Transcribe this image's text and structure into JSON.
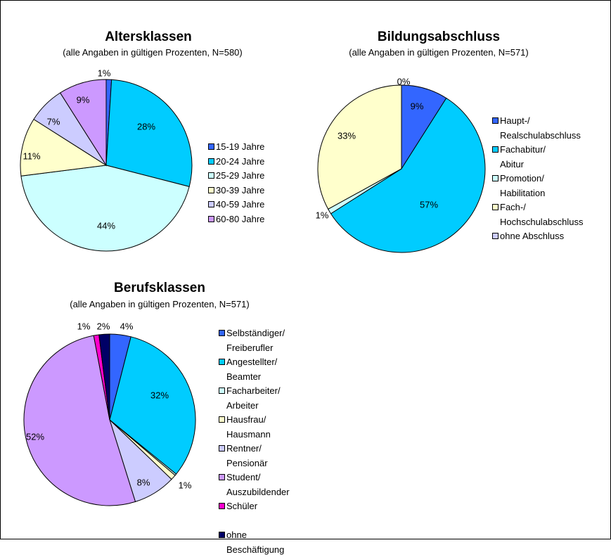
{
  "chart_data": [
    {
      "type": "pie",
      "title": "Altersklassen",
      "subtitle": "(alle Angaben in gültigen Prozenten, N=580)",
      "categories": [
        "15-19 Jahre",
        "20-24 Jahre",
        "25-29 Jahre",
        "30-39 Jahre",
        "40-59 Jahre",
        "60-80 Jahre"
      ],
      "values": [
        1,
        28,
        44,
        11,
        7,
        9
      ],
      "data_labels": [
        "1%",
        "28%",
        "44%",
        "11%",
        "7%",
        "9%"
      ],
      "colors": [
        "#3366ff",
        "#00ccff",
        "#ccffff",
        "#ffffcc",
        "#ccccff",
        "#cc99ff"
      ],
      "legend_lines": [
        [
          "15-19 Jahre"
        ],
        [
          "20-24 Jahre"
        ],
        [
          "25-29 Jahre"
        ],
        [
          "30-39 Jahre"
        ],
        [
          "40-59 Jahre"
        ],
        [
          "60-80 Jahre"
        ]
      ],
      "legend": "right"
    },
    {
      "type": "pie",
      "title": "Bildungsabschluss",
      "subtitle": "(alle Angaben in gültigen Prozenten, N=571)",
      "categories": [
        "Haupt-/ Realschulabschluss",
        "Fachabitur/ Abitur",
        "Promotion/ Habilitation",
        "Fach-/ Hochschulabschluss",
        "ohne Abschluss"
      ],
      "values": [
        9,
        57,
        1,
        33,
        0
      ],
      "data_labels": [
        "9%",
        "57%",
        "1%",
        "33%",
        "0%"
      ],
      "colors": [
        "#3366ff",
        "#00ccff",
        "#ccffff",
        "#ffffcc",
        "#ccccff"
      ],
      "legend_lines": [
        [
          "Haupt-/",
          "Realschulabschluss"
        ],
        [
          "Fachabitur/",
          "Abitur"
        ],
        [
          "Promotion/",
          "Habilitation"
        ],
        [
          "Fach-/",
          "Hochschulabschluss"
        ],
        [
          "ohne Abschluss"
        ]
      ],
      "legend": "right"
    },
    {
      "type": "pie",
      "title": "Berufsklassen",
      "subtitle": "(alle Angaben in gültigen Prozenten, N=571)",
      "categories": [
        "Selbständiger/ Freiberufler",
        "Angestellter/ Beamter",
        "Facharbeiter/ Arbeiter",
        "Hausfrau/ Hausmann",
        "Rentner/ Pensionär",
        "Student/ Auszubildender",
        "Schüler",
        "ohne Beschäftigung"
      ],
      "values": [
        4,
        32,
        0.3,
        1,
        8,
        52,
        1,
        2
      ],
      "data_labels": [
        "4%",
        "32%",
        "",
        "1%",
        "8%",
        "52%",
        "1%",
        "2%"
      ],
      "colors": [
        "#3366ff",
        "#00ccff",
        "#ccffff",
        "#ffffcc",
        "#ccccff",
        "#cc99ff",
        "#ff00cc",
        "#000066"
      ],
      "legend_lines": [
        [
          "Selbständiger/",
          "Freiberufler"
        ],
        [
          "Angestellter/",
          "Beamter"
        ],
        [
          "Facharbeiter/",
          "Arbeiter"
        ],
        [
          "Hausfrau/",
          "Hausmann"
        ],
        [
          "Rentner/",
          "Pensionär"
        ],
        [
          "Student/",
          "Auszubildender"
        ],
        [
          "Schüler",
          ""
        ],
        [
          "ohne",
          "Beschäftigung"
        ]
      ],
      "legend": "right"
    }
  ]
}
